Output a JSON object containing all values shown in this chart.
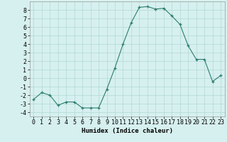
{
  "x": [
    0,
    1,
    2,
    3,
    4,
    5,
    6,
    7,
    8,
    9,
    10,
    11,
    12,
    13,
    14,
    15,
    16,
    17,
    18,
    19,
    20,
    21,
    22,
    23
  ],
  "y": [
    -2.5,
    -1.7,
    -2.0,
    -3.2,
    -2.8,
    -2.8,
    -3.5,
    -3.5,
    -3.5,
    -1.3,
    1.2,
    4.0,
    6.5,
    8.3,
    8.4,
    8.1,
    8.2,
    7.3,
    6.3,
    3.8,
    2.2,
    2.2,
    -0.4,
    0.3
  ],
  "line_color": "#2d7d6e",
  "marker_color": "#2d7d6e",
  "bg_color": "#d6f0ef",
  "grid_color": "#b0d8d5",
  "xlabel": "Humidex (Indice chaleur)",
  "ylim": [
    -4.5,
    9.0
  ],
  "xlim": [
    -0.5,
    23.5
  ],
  "yticks": [
    -4,
    -3,
    -2,
    -1,
    0,
    1,
    2,
    3,
    4,
    5,
    6,
    7,
    8
  ],
  "xticks": [
    0,
    1,
    2,
    3,
    4,
    5,
    6,
    7,
    8,
    9,
    10,
    11,
    12,
    13,
    14,
    15,
    16,
    17,
    18,
    19,
    20,
    21,
    22,
    23
  ],
  "label_fontsize": 6.5,
  "tick_fontsize": 6
}
